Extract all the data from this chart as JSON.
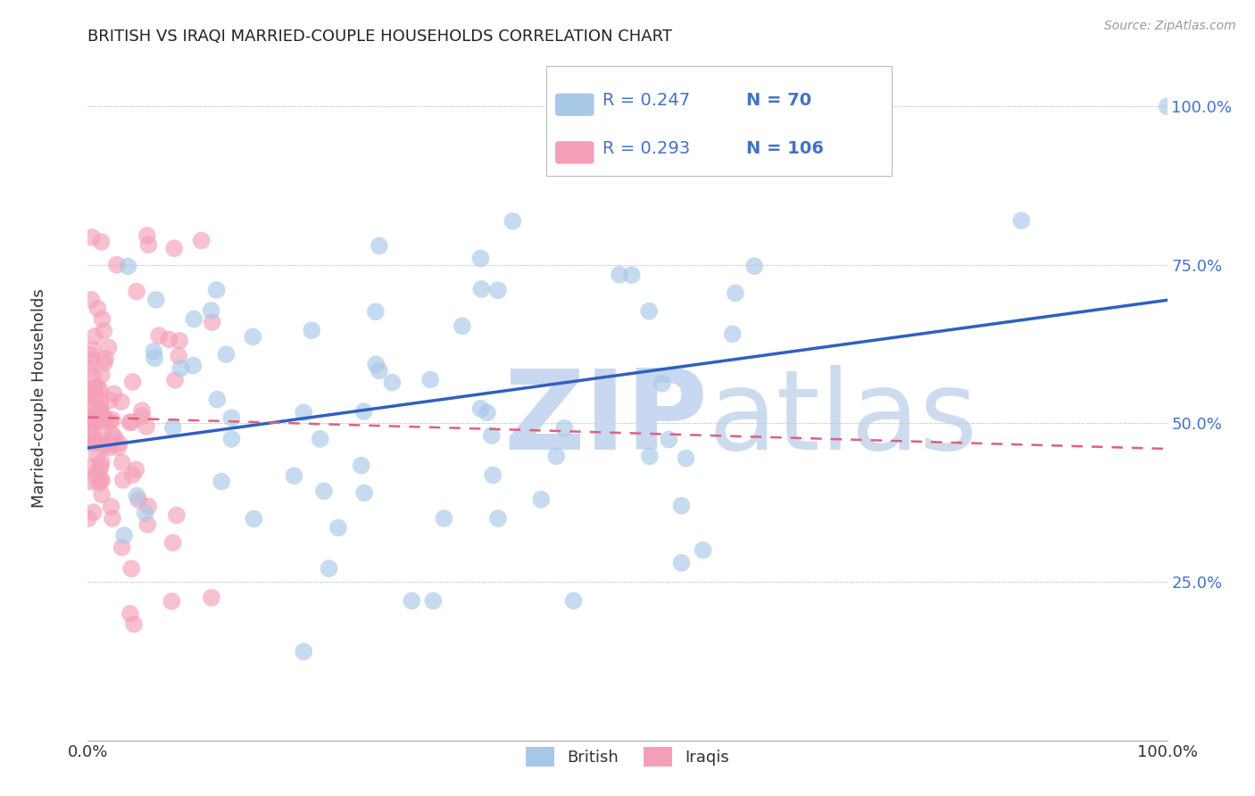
{
  "title": "BRITISH VS IRAQI MARRIED-COUPLE HOUSEHOLDS CORRELATION CHART",
  "source_text": "Source: ZipAtlas.com",
  "ylabel": "Married-couple Households",
  "british_R": 0.247,
  "british_N": 70,
  "iraqi_R": 0.293,
  "iraqi_N": 106,
  "british_color": "#a8c8e8",
  "iraqi_color": "#f4a0b8",
  "british_line_color": "#3060c0",
  "iraqi_line_color": "#e06080",
  "tick_color": "#4472c4",
  "watermark_zip": "ZIP",
  "watermark_atlas": "atlas",
  "watermark_color": "#c8d8f0",
  "background_color": "#ffffff",
  "grid_color": "#d8d8d8",
  "title_color": "#222222",
  "source_color": "#999999"
}
